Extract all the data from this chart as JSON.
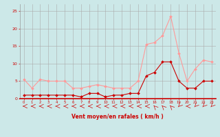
{
  "hours": [
    0,
    1,
    2,
    3,
    4,
    5,
    6,
    7,
    8,
    9,
    10,
    11,
    12,
    13,
    14,
    15,
    16,
    17,
    18,
    19,
    20,
    21,
    22,
    23
  ],
  "avg_wind": [
    1,
    1,
    1,
    1,
    1,
    1,
    1,
    0.5,
    1.5,
    1.5,
    0.5,
    1,
    1,
    1.5,
    1.5,
    6.5,
    7.5,
    10.5,
    10.5,
    5,
    3,
    3,
    5,
    5
  ],
  "gust_wind": [
    5.5,
    3,
    5.5,
    5,
    5,
    5,
    3,
    3,
    3.5,
    4,
    3.5,
    3,
    3,
    3,
    5,
    15.5,
    16,
    18,
    23.5,
    13,
    5,
    8.5,
    11,
    10.5
  ],
  "avg_color": "#cc0000",
  "gust_color": "#ff9999",
  "bg_color": "#cce8e8",
  "grid_color": "#aaaaaa",
  "xlabel": "Vent moyen/en rafales ( km/h )",
  "ylim": [
    0,
    27
  ],
  "xlim": [
    -0.5,
    23.5
  ],
  "yticks": [
    0,
    5,
    10,
    15,
    20,
    25
  ],
  "arrow_angles": [
    270,
    270,
    270,
    270,
    270,
    270,
    270,
    270,
    270,
    270,
    270,
    270,
    270,
    270,
    270,
    270,
    225,
    225,
    225,
    315,
    270,
    315,
    315,
    315
  ]
}
